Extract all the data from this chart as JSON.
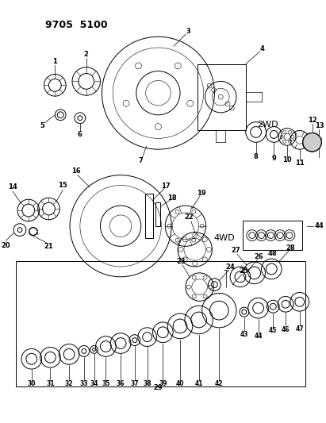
{
  "title": "9705  5100",
  "bg": "#ffffff",
  "fg": "#000000",
  "label_2wd": "2WD",
  "label_4wd": "4WD",
  "fig_width": 4.11,
  "fig_height": 5.33,
  "dpi": 100
}
